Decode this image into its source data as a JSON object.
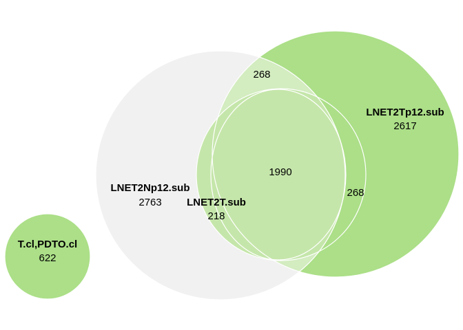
{
  "diagram": {
    "type": "euler",
    "sets": [
      {
        "id": "np12",
        "name": "LNET2Np12.sub",
        "count": "2763",
        "color": "#f1f1f1"
      },
      {
        "id": "tp12",
        "name": "LNET2Tp12.sub",
        "count": "2617",
        "color": "#acdf88"
      },
      {
        "id": "t",
        "name": "LNET2T.sub",
        "count": "218",
        "color": "#acdf88"
      },
      {
        "id": "tcl",
        "name": "T.cl,PDTO.cl",
        "count": "622",
        "color": "#acdf88"
      }
    ],
    "intersections": [
      {
        "id": "np12-tp12",
        "count": "268",
        "color": "#d3ecc0"
      },
      {
        "id": "t-tp12",
        "count": "268",
        "color": "#c5e6aa"
      },
      {
        "id": "center",
        "count": "1990",
        "color": "#c5e6aa"
      }
    ],
    "outline_color": "#ffffff"
  }
}
